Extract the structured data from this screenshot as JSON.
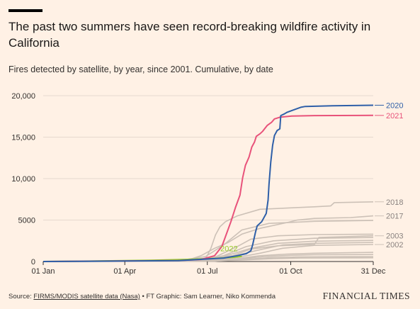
{
  "header": {
    "title": "The past two summers have seen record-breaking wildfire activity in California",
    "subtitle": "Fires detected by satellite, by year, since 2001. Cumulative, by date"
  },
  "footer": {
    "source_label": "Source: ",
    "source_link": "FIRMS/MODIS satellite data (Nasa)",
    "credits": " • FT Graphic: Sam Learner, Niko Kommenda",
    "brand": "FINANCIAL TIMES"
  },
  "colors": {
    "background": "#fff1e5",
    "grid": "#e6d9ce",
    "axis": "#33302e",
    "past_years": "#ccc1b7",
    "y2020": "#2e5fa8",
    "y2021": "#e8527a",
    "y2022": "#96cc28"
  },
  "chart_data": {
    "type": "line",
    "title": "The past two summers have seen record-breaking wildfire activity in California",
    "subtitle": "Fires detected by satellite, by year, since 2001. Cumulative, by date",
    "xlabel": "",
    "ylabel": "",
    "x_unit": "day of year",
    "xlim": [
      1,
      365
    ],
    "ylim": [
      0,
      20000
    ],
    "x_ticks": [
      {
        "day": 1,
        "label": "01 Jan"
      },
      {
        "day": 91,
        "label": "01 Apr"
      },
      {
        "day": 182,
        "label": "01 Jul"
      },
      {
        "day": 274,
        "label": "01 Oct"
      },
      {
        "day": 365,
        "label": "31 Dec"
      }
    ],
    "y_ticks": [
      {
        "value": 0,
        "label": "0"
      },
      {
        "value": 5000,
        "label": "5000"
      },
      {
        "value": 10000,
        "label": "10,000"
      },
      {
        "value": 15000,
        "label": "15,000"
      },
      {
        "value": 20000,
        "label": "20,000"
      }
    ],
    "grid": true,
    "highlighted_series": [
      {
        "name": "2020",
        "label": "2020",
        "points": [
          [
            1,
            0
          ],
          [
            150,
            100
          ],
          [
            200,
            420
          ],
          [
            215,
            700
          ],
          [
            225,
            950
          ],
          [
            230,
            1300
          ],
          [
            232,
            2000
          ],
          [
            235,
            3500
          ],
          [
            237,
            4300
          ],
          [
            242,
            4800
          ],
          [
            247,
            5800
          ],
          [
            249,
            7400
          ],
          [
            250,
            9300
          ],
          [
            252,
            12000
          ],
          [
            254,
            14000
          ],
          [
            256,
            15200
          ],
          [
            259,
            15800
          ],
          [
            262,
            16000
          ],
          [
            263,
            17600
          ],
          [
            267,
            17800
          ],
          [
            270,
            18000
          ],
          [
            275,
            18200
          ],
          [
            285,
            18600
          ],
          [
            290,
            18700
          ],
          [
            320,
            18780
          ],
          [
            365,
            18850
          ]
        ]
      },
      {
        "name": "2021",
        "label": "2021",
        "points": [
          [
            1,
            0
          ],
          [
            150,
            120
          ],
          [
            175,
            250
          ],
          [
            190,
            700
          ],
          [
            198,
            1800
          ],
          [
            203,
            3300
          ],
          [
            208,
            4800
          ],
          [
            213,
            6500
          ],
          [
            218,
            8000
          ],
          [
            221,
            10100
          ],
          [
            224,
            11600
          ],
          [
            228,
            12600
          ],
          [
            231,
            13800
          ],
          [
            234,
            14400
          ],
          [
            236,
            15100
          ],
          [
            240,
            15400
          ],
          [
            243,
            15700
          ],
          [
            248,
            16400
          ],
          [
            253,
            16800
          ],
          [
            256,
            17200
          ],
          [
            262,
            17400
          ],
          [
            275,
            17550
          ],
          [
            300,
            17600
          ],
          [
            365,
            17620
          ]
        ]
      },
      {
        "name": "2022",
        "label": "2022",
        "points": [
          [
            1,
            0
          ],
          [
            60,
            60
          ],
          [
            120,
            150
          ],
          [
            160,
            260
          ],
          [
            190,
            380
          ],
          [
            210,
            500
          ],
          [
            220,
            620
          ]
        ]
      }
    ],
    "past_series": [
      {
        "name": "2018",
        "label": "2018",
        "points": [
          [
            1,
            0
          ],
          [
            150,
            80
          ],
          [
            180,
            300
          ],
          [
            186,
            1600
          ],
          [
            191,
            3200
          ],
          [
            196,
            4200
          ],
          [
            202,
            4800
          ],
          [
            215,
            5500
          ],
          [
            240,
            6300
          ],
          [
            280,
            6500
          ],
          [
            300,
            6600
          ],
          [
            318,
            6700
          ],
          [
            322,
            7100
          ],
          [
            365,
            7200
          ]
        ]
      },
      {
        "name": "2017",
        "label": "2017",
        "points": [
          [
            1,
            0
          ],
          [
            160,
            150
          ],
          [
            175,
            700
          ],
          [
            190,
            1600
          ],
          [
            205,
            2300
          ],
          [
            220,
            3300
          ],
          [
            240,
            4000
          ],
          [
            270,
            4700
          ],
          [
            281,
            5000
          ],
          [
            300,
            5200
          ],
          [
            340,
            5300
          ],
          [
            365,
            5500
          ]
        ]
      },
      {
        "name": "",
        "label": "",
        "points": [
          [
            1,
            0
          ],
          [
            150,
            100
          ],
          [
            180,
            600
          ],
          [
            200,
            2000
          ],
          [
            220,
            3800
          ],
          [
            250,
            4600
          ],
          [
            300,
            4850
          ],
          [
            365,
            4950
          ]
        ]
      },
      {
        "name": "",
        "label": "",
        "points": [
          [
            1,
            0
          ],
          [
            150,
            80
          ],
          [
            190,
            500
          ],
          [
            215,
            1800
          ],
          [
            230,
            2700
          ],
          [
            260,
            3100
          ],
          [
            300,
            3250
          ],
          [
            365,
            3300
          ]
        ]
      },
      {
        "name": "2003",
        "label": "2003",
        "points": [
          [
            1,
            0
          ],
          [
            170,
            100
          ],
          [
            210,
            700
          ],
          [
            230,
            1500
          ],
          [
            260,
            1900
          ],
          [
            300,
            2050
          ],
          [
            305,
            2900
          ],
          [
            365,
            3100
          ]
        ]
      },
      {
        "name": "",
        "label": "",
        "points": [
          [
            1,
            0
          ],
          [
            170,
            120
          ],
          [
            200,
            700
          ],
          [
            225,
            1800
          ],
          [
            255,
            2500
          ],
          [
            300,
            2800
          ],
          [
            365,
            2900
          ]
        ]
      },
      {
        "name": "",
        "label": "",
        "points": [
          [
            1,
            0
          ],
          [
            170,
            100
          ],
          [
            200,
            600
          ],
          [
            230,
            1600
          ],
          [
            260,
            2200
          ],
          [
            300,
            2450
          ],
          [
            365,
            2550
          ]
        ]
      },
      {
        "name": "",
        "label": "",
        "points": [
          [
            1,
            0
          ],
          [
            170,
            90
          ],
          [
            205,
            500
          ],
          [
            235,
            1300
          ],
          [
            265,
            2000
          ],
          [
            300,
            2200
          ],
          [
            365,
            2300
          ]
        ]
      },
      {
        "name": "2002",
        "label": "2002",
        "points": [
          [
            1,
            0
          ],
          [
            170,
            80
          ],
          [
            210,
            400
          ],
          [
            240,
            1000
          ],
          [
            265,
            1600
          ],
          [
            300,
            1950
          ],
          [
            365,
            2050
          ]
        ]
      },
      {
        "name": "",
        "label": "",
        "points": [
          [
            1,
            0
          ],
          [
            180,
            60
          ],
          [
            215,
            350
          ],
          [
            240,
            700
          ],
          [
            270,
            900
          ],
          [
            300,
            1000
          ],
          [
            365,
            1100
          ]
        ]
      },
      {
        "name": "",
        "label": "",
        "points": [
          [
            1,
            0
          ],
          [
            180,
            60
          ],
          [
            215,
            300
          ],
          [
            245,
            600
          ],
          [
            275,
            750
          ],
          [
            300,
            820
          ],
          [
            365,
            850
          ]
        ]
      },
      {
        "name": "",
        "label": "",
        "points": [
          [
            1,
            0
          ],
          [
            190,
            50
          ],
          [
            220,
            250
          ],
          [
            250,
            450
          ],
          [
            280,
            550
          ],
          [
            365,
            600
          ]
        ]
      },
      {
        "name": "",
        "label": "",
        "points": [
          [
            1,
            0
          ],
          [
            190,
            40
          ],
          [
            225,
            200
          ],
          [
            255,
            350
          ],
          [
            285,
            420
          ],
          [
            365,
            450
          ]
        ]
      }
    ]
  }
}
